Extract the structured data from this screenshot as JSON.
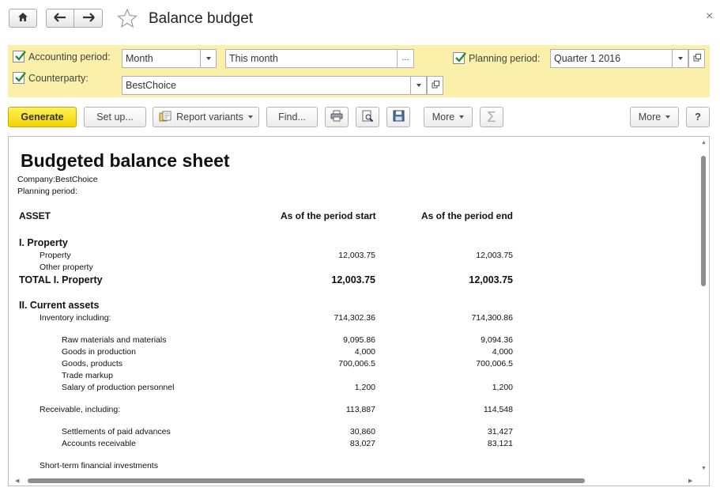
{
  "window": {
    "title": "Balance budget",
    "close_glyph": "×",
    "icons": [
      "home-icon",
      "arrow-left-icon",
      "arrow-right-icon",
      "star-icon",
      "close-icon"
    ]
  },
  "filters": {
    "accounting_period": {
      "label": "Accounting period:",
      "checked": true,
      "period_type": "Month",
      "period_value": "This month",
      "dots": "..."
    },
    "counterparty": {
      "label": "Counterparty:",
      "checked": true,
      "value": "BestChoice"
    },
    "planning_period": {
      "label": "Planning period:",
      "checked": true,
      "value": "Quarter 1 2016"
    }
  },
  "toolbar": {
    "generate": "Generate",
    "setup": "Set up...",
    "report_variants": "Report variants",
    "find": "Find...",
    "more_left": "More",
    "sum": "Σ",
    "more_right": "More",
    "help": "?",
    "icons": [
      "print-icon",
      "preview-icon",
      "save-icon",
      "report-variants-icon"
    ]
  },
  "report": {
    "title": "Budgeted balance sheet",
    "company": "Company:BestChoice",
    "planning_period": "Planning period:",
    "col_item": "ASSET",
    "col_start": "As of the period start",
    "col_end": "As of the period end",
    "section1": {
      "title": "I. Property",
      "rows": [
        {
          "name": "Property",
          "start": "12,003.75",
          "end": "12,003.75"
        },
        {
          "name": "Other property",
          "start": "",
          "end": ""
        }
      ],
      "total": {
        "name": "TOTAL I. Property",
        "start": "12,003.75",
        "end": "12,003.75"
      }
    },
    "section2": {
      "title": "II. Current assets",
      "inventory": {
        "name": "Inventory including:",
        "start": "714,302.36",
        "end": "714,300.86"
      },
      "inventory_rows": [
        {
          "name": "Raw materials and materials",
          "start": "9,095.86",
          "end": "9,094.36"
        },
        {
          "name": "Goods in production",
          "start": "4,000",
          "end": "4,000"
        },
        {
          "name": "Goods, products",
          "start": "700,006.5",
          "end": "700,006.5"
        },
        {
          "name": "Trade markup",
          "start": "",
          "end": ""
        },
        {
          "name": "Salary of production personnel",
          "start": "1,200",
          "end": "1,200"
        }
      ],
      "receivable": {
        "name": "Receivable, including:",
        "start": "113,887",
        "end": "114,548"
      },
      "receivable_rows": [
        {
          "name": "Settlements of paid advances",
          "start": "30,860",
          "end": "31,427"
        },
        {
          "name": "Accounts receivable",
          "start": "83,027",
          "end": "83,121"
        }
      ],
      "short_term": {
        "name": "Short-term financial investments",
        "start": "",
        "end": ""
      }
    }
  }
}
